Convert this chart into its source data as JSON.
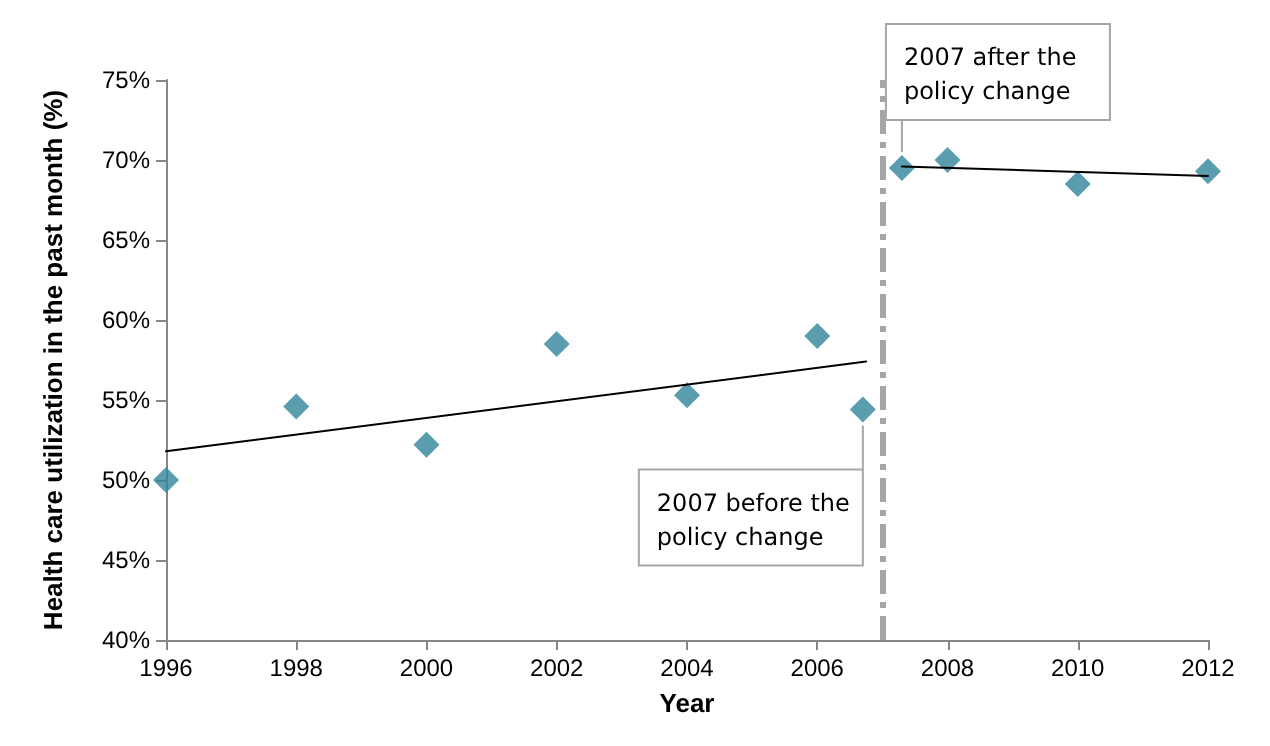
{
  "chart_data": {
    "type": "scatter",
    "xlabel": "Year",
    "ylabel": "Health care utilization in the past month (%)",
    "xlim": [
      1996,
      2012
    ],
    "xticks": [
      1996,
      1998,
      2000,
      2002,
      2004,
      2006,
      2008,
      2010,
      2012
    ],
    "ylim": [
      40,
      75
    ],
    "yticks": [
      {
        "value": 40,
        "label": "40%"
      },
      {
        "value": 45,
        "label": "45%"
      },
      {
        "value": 50,
        "label": "50%"
      },
      {
        "value": 55,
        "label": "55%"
      },
      {
        "value": 60,
        "label": "60%"
      },
      {
        "value": 65,
        "label": "65%"
      },
      {
        "value": 70,
        "label": "70%"
      },
      {
        "value": 75,
        "label": "75%"
      }
    ],
    "grid": false,
    "series": [
      {
        "color": "#31849b",
        "marker": "diamond",
        "x": [
          1996,
          1998,
          2000,
          2002,
          2004,
          2006,
          2006.7,
          2007.3,
          2008,
          2010,
          2012
        ],
        "values": [
          50.0,
          54.6,
          52.2,
          58.5,
          55.3,
          59.0,
          54.4,
          69.5,
          70.0,
          68.5,
          69.3
        ]
      },
      {
        "type": "line",
        "color": "#000000",
        "marker": "none",
        "x": [
          1996,
          2006.75
        ],
        "values": [
          51.8,
          57.4
        ]
      },
      {
        "type": "line",
        "color": "#000000",
        "marker": "none",
        "x": [
          2007.3,
          2012
        ],
        "values": [
          69.6,
          69.0
        ]
      }
    ],
    "ref_lines": [
      {
        "axis": "x",
        "value": 2007,
        "label": null,
        "color": "#a6a6a6",
        "line_style": "dashed"
      }
    ],
    "annotations": [
      {
        "text": "2007 before the policy change",
        "x": 2006.7,
        "y": 54.4
      },
      {
        "text": "2007 after the policy change",
        "x": 2007.3,
        "y": 69.5
      }
    ]
  }
}
